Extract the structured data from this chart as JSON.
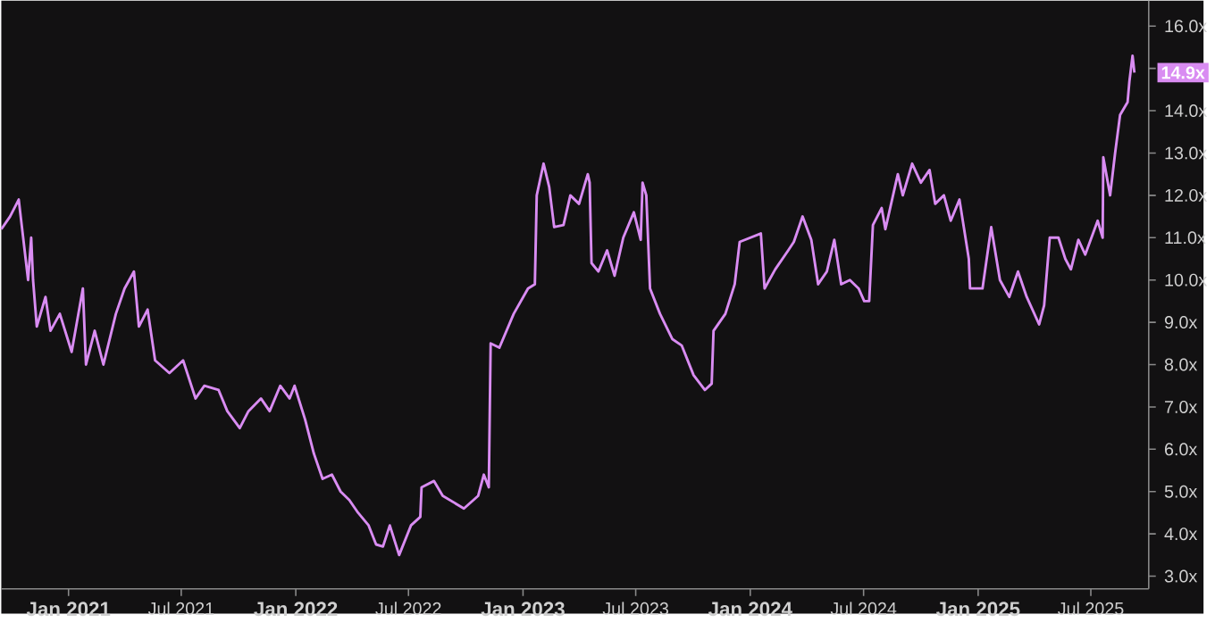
{
  "chart_data": {
    "type": "line",
    "color": "#d98cf2",
    "marker": "none",
    "line_style": "solid",
    "grid": false,
    "x": [
      "2020-09-15",
      "2020-09-29",
      "2020-10-13",
      "2020-10-28",
      "2020-11-02",
      "2020-11-05",
      "2020-11-11",
      "2020-11-25",
      "2020-12-03",
      "2020-12-18",
      "2021-01-06",
      "2021-01-24",
      "2021-01-29",
      "2021-02-12",
      "2021-02-26",
      "2021-03-18",
      "2021-04-01",
      "2021-04-16",
      "2021-04-24",
      "2021-05-08",
      "2021-05-20",
      "2021-06-12",
      "2021-07-04",
      "2021-07-24",
      "2021-08-07",
      "2021-08-30",
      "2021-09-13",
      "2021-10-03",
      "2021-10-17",
      "2021-11-06",
      "2021-11-20",
      "2021-12-07",
      "2021-12-22",
      "2021-12-30",
      "2022-01-16",
      "2022-01-30",
      "2022-02-13",
      "2022-02-28",
      "2022-03-14",
      "2022-03-28",
      "2022-04-11",
      "2022-04-28",
      "2022-05-10",
      "2022-05-21",
      "2022-06-01",
      "2022-06-16",
      "2022-07-05",
      "2022-07-20",
      "2022-07-22",
      "2022-08-11",
      "2022-08-25",
      "2022-09-28",
      "2022-10-21",
      "2022-10-30",
      "2022-11-07",
      "2022-11-10",
      "2022-11-24",
      "2022-12-17",
      "2023-01-09",
      "2023-01-20",
      "2023-01-23",
      "2023-02-03",
      "2023-02-12",
      "2023-02-20",
      "2023-03-07",
      "2023-03-18",
      "2023-04-01",
      "2023-04-15",
      "2023-04-18",
      "2023-04-21",
      "2023-05-02",
      "2023-05-16",
      "2023-05-28",
      "2023-06-11",
      "2023-06-28",
      "2023-07-09",
      "2023-07-12",
      "2023-07-18",
      "2023-07-24",
      "2023-08-09",
      "2023-08-29",
      "2023-09-13",
      "2023-10-02",
      "2023-10-20",
      "2023-10-31",
      "2023-11-03",
      "2023-11-22",
      "2023-12-07",
      "2023-12-15",
      "2024-01-18",
      "2024-01-24",
      "2024-02-10",
      "2024-03-02",
      "2024-03-11",
      "2024-03-25",
      "2024-04-08",
      "2024-04-19",
      "2024-05-03",
      "2024-05-15",
      "2024-05-26",
      "2024-06-09",
      "2024-06-23",
      "2024-07-02",
      "2024-07-10",
      "2024-07-16",
      "2024-07-30",
      "2024-08-05",
      "2024-08-25",
      "2024-09-02",
      "2024-09-17",
      "2024-10-01",
      "2024-10-15",
      "2024-10-24",
      "2024-11-07",
      "2024-11-18",
      "2024-12-02",
      "2024-12-17",
      "2024-12-19",
      "2025-01-08",
      "2025-01-22",
      "2025-02-05",
      "2025-02-20",
      "2025-03-06",
      "2025-03-20",
      "2025-04-09",
      "2025-04-17",
      "2025-04-26",
      "2025-05-10",
      "2025-05-21",
      "2025-05-30",
      "2025-06-11",
      "2025-06-22",
      "2025-07-12",
      "2025-07-20",
      "2025-07-21",
      "2025-08-01",
      "2025-08-09",
      "2025-08-17",
      "2025-08-29",
      "2025-09-01",
      "2025-09-06",
      "2025-09-09"
    ],
    "values": [
      11.2,
      11.5,
      11.9,
      10.0,
      11.0,
      10.0,
      8.9,
      9.6,
      8.8,
      9.2,
      8.3,
      9.8,
      8.0,
      8.8,
      8.0,
      9.2,
      9.8,
      10.2,
      8.9,
      9.3,
      8.1,
      7.8,
      8.1,
      7.2,
      7.5,
      7.4,
      6.9,
      6.5,
      6.9,
      7.2,
      6.9,
      7.5,
      7.2,
      7.5,
      6.7,
      5.9,
      5.3,
      5.4,
      5.0,
      4.8,
      4.5,
      4.2,
      3.75,
      3.7,
      4.2,
      3.5,
      4.2,
      4.4,
      5.1,
      5.25,
      4.9,
      4.6,
      4.9,
      5.4,
      5.1,
      8.5,
      8.4,
      9.2,
      9.8,
      9.9,
      12.0,
      12.75,
      12.2,
      11.25,
      11.3,
      12.0,
      11.8,
      12.5,
      12.3,
      10.4,
      10.2,
      10.7,
      10.1,
      11.0,
      11.6,
      10.95,
      12.3,
      12.0,
      9.8,
      9.2,
      8.6,
      8.45,
      7.75,
      7.4,
      7.55,
      8.8,
      9.2,
      9.9,
      10.9,
      11.1,
      9.8,
      10.25,
      10.7,
      10.9,
      11.5,
      10.95,
      9.9,
      10.2,
      10.95,
      9.9,
      10.0,
      9.8,
      9.5,
      9.5,
      11.3,
      11.7,
      11.2,
      12.5,
      12.0,
      12.75,
      12.3,
      12.6,
      11.8,
      12.0,
      11.4,
      11.9,
      10.5,
      9.8,
      9.8,
      11.25,
      10.0,
      9.6,
      10.2,
      9.6,
      8.95,
      9.4,
      11.0,
      11.0,
      10.5,
      10.25,
      10.95,
      10.6,
      11.4,
      11.0,
      12.9,
      12.0,
      13.0,
      13.9,
      14.2,
      14.7,
      15.3,
      14.9
    ],
    "xlim": [
      "2020-09-15",
      "2025-10-02"
    ],
    "xticks": [
      {
        "value": "2021-01-01",
        "label": "Jan 2021"
      },
      {
        "value": "2021-07-01",
        "label": "Jul 2021"
      },
      {
        "value": "2022-01-01",
        "label": "Jan 2022"
      },
      {
        "value": "2022-07-01",
        "label": "Jul 2022"
      },
      {
        "value": "2023-01-01",
        "label": "Jan 2023"
      },
      {
        "value": "2023-07-01",
        "label": "Jul 2023"
      },
      {
        "value": "2024-01-01",
        "label": "Jan 2024"
      },
      {
        "value": "2024-07-01",
        "label": "Jul 2024"
      },
      {
        "value": "2025-01-01",
        "label": "Jan 2025"
      },
      {
        "value": "2025-07-01",
        "label": "Jul 2025"
      }
    ],
    "ylim": [
      2.7,
      16.6
    ],
    "yticks": [
      {
        "value": 3,
        "label": "3.0x"
      },
      {
        "value": 4,
        "label": "4.0x"
      },
      {
        "value": 5,
        "label": "5.0x"
      },
      {
        "value": 6,
        "label": "6.0x"
      },
      {
        "value": 7,
        "label": "7.0x"
      },
      {
        "value": 8,
        "label": "8.0x"
      },
      {
        "value": 9,
        "label": "9.0x"
      },
      {
        "value": 10,
        "label": "10.0x"
      },
      {
        "value": 11,
        "label": "11.0x"
      },
      {
        "value": 12,
        "label": "12.0x"
      },
      {
        "value": 13,
        "label": "13.0x"
      },
      {
        "value": 14,
        "label": "14.0x"
      },
      {
        "value": 15,
        "label": null
      },
      {
        "value": 16,
        "label": "16.0x"
      }
    ],
    "annotations": [
      {
        "text": "14.9x",
        "x": "2025-09-09",
        "y": 14.9
      }
    ]
  }
}
